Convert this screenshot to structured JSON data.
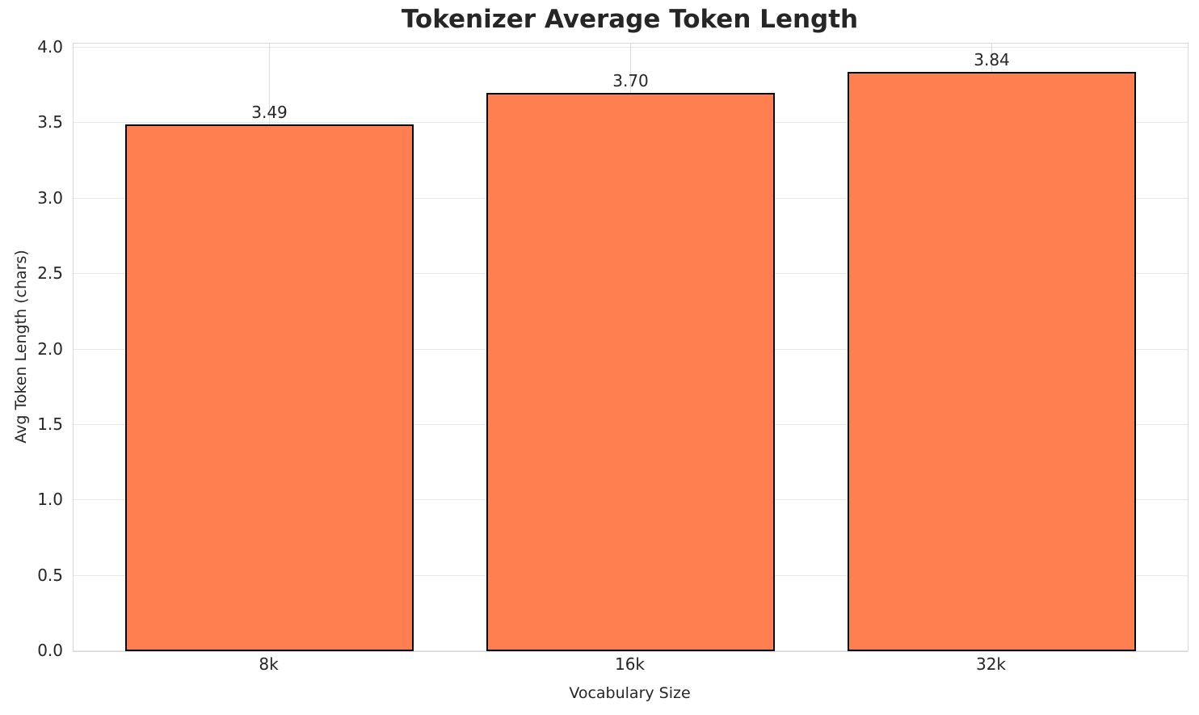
{
  "chart_data": {
    "type": "bar",
    "title": "Tokenizer Average Token Length",
    "xlabel": "Vocabulary Size",
    "ylabel": "Avg Token Length (chars)",
    "categories": [
      "8k",
      "16k",
      "32k"
    ],
    "values": [
      3.49,
      3.7,
      3.84
    ],
    "value_labels": [
      "3.49",
      "3.70",
      "3.84"
    ],
    "ylim": [
      0.0,
      4.0
    ],
    "yticks": [
      "0.0",
      "0.5",
      "1.0",
      "1.5",
      "2.0",
      "2.5",
      "3.0",
      "3.5",
      "4.0"
    ],
    "legend": "none",
    "grid": "on",
    "colors": {
      "bar_fill": "#FF7F50",
      "bar_edge": "#000000",
      "grid_h": "#e7e7e7",
      "grid_v": "#dedede",
      "spine": "#d9d9d9",
      "text": "#262626"
    }
  }
}
